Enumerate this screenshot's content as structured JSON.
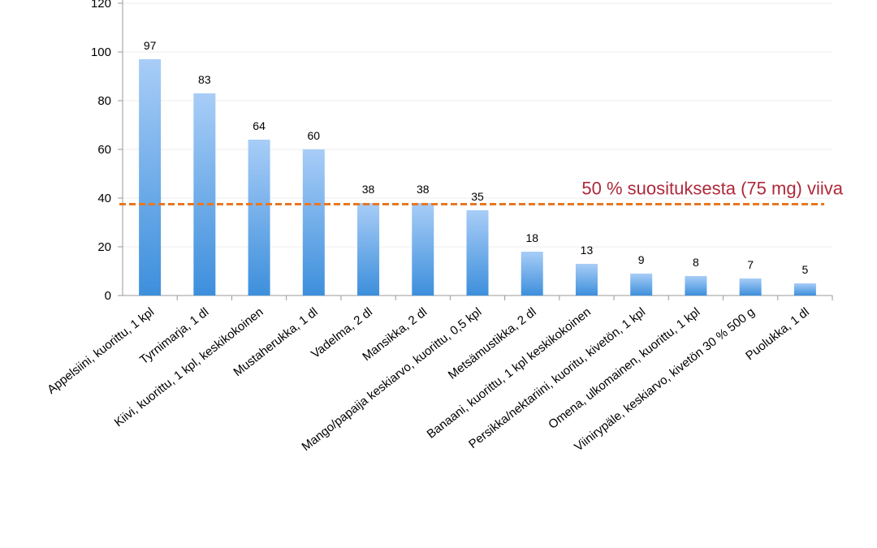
{
  "chart_data": {
    "type": "bar",
    "title": "",
    "xlabel": "",
    "ylabel": "",
    "ylim": [
      0,
      120
    ],
    "yticks": [
      0,
      20,
      40,
      60,
      80,
      100,
      120
    ],
    "grid": true,
    "legend": "none",
    "categories": [
      "Appelsiini, kuorittu, 1 kpl",
      "Tyrnimarja, 1 dl",
      "Kiivi, kuorittu, 1 kpl, keskikokoinen",
      "Mustaherukka, 1 dl",
      "Vadelma, 2 dl",
      "Mansikka, 2 dl",
      "Mango/papaija keskiarvo, kuorittu, 0,5 kpl",
      "Metsämustikka, 2 dl",
      "Banaani, kuorittu, 1 kpl keskikokoinen",
      "Persikka/nektariini, kuoritu, kivetön, 1 kpl",
      "Omena, ulkomainen, kuorittu, 1 kpl",
      "Viinirypäle, keskiarvo, kivetön 30 % 500 g",
      "Puolukka, 1 dl"
    ],
    "values": [
      97,
      83,
      64,
      60,
      38,
      38,
      35,
      18,
      13,
      9,
      8,
      7,
      5
    ],
    "reference_line": {
      "value": 37.5,
      "label": "50 % suosituksesta (75 mg) viiva",
      "color": "#e87722"
    },
    "colors": {
      "bar_top": "#a8cdf7",
      "bar_bottom": "#3d8fdc",
      "label_color": "#b0283a",
      "axis": "#999999",
      "grid": "#eeeeee"
    }
  }
}
